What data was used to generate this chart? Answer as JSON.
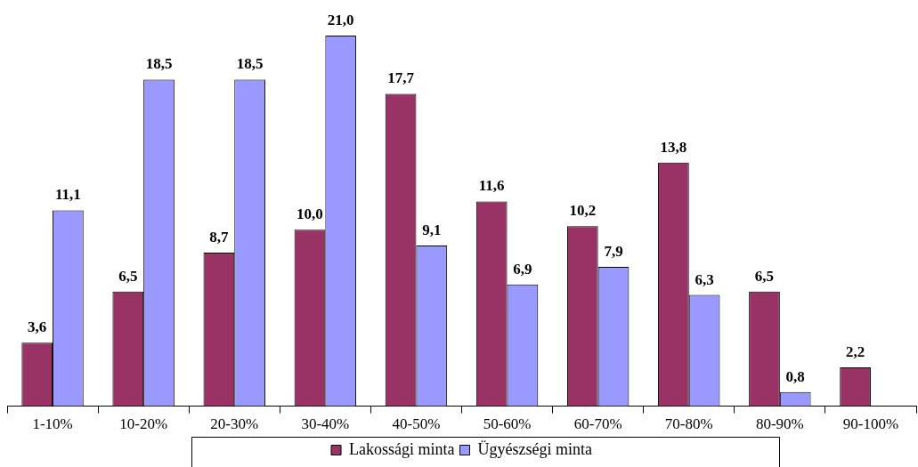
{
  "chart_data": {
    "type": "bar",
    "categories": [
      "1-10%",
      "10-20%",
      "20-30%",
      "30-40%",
      "40-50%",
      "50-60%",
      "60-70%",
      "70-80%",
      "80-90%",
      "90-100%"
    ],
    "series": [
      {
        "name": "Lakossági minta",
        "color": "#993366",
        "values": [
          3.6,
          6.5,
          8.7,
          10.0,
          17.7,
          11.6,
          10.2,
          13.8,
          6.5,
          2.2
        ],
        "value_labels": [
          "3,6",
          "6,5",
          "8,7",
          "10,0",
          "17,7",
          "11,6",
          "10,2",
          "13,8",
          "6,5",
          "2,2"
        ]
      },
      {
        "name": "Ügyészségi minta",
        "color": "#9999ff",
        "values": [
          11.1,
          18.5,
          18.5,
          21.0,
          9.1,
          6.9,
          7.9,
          6.3,
          0.8,
          null
        ],
        "value_labels": [
          "11,1",
          "18,5",
          "18,5",
          "21,0",
          "9,1",
          "6,9",
          "7,9",
          "6,3",
          "0,8",
          null
        ]
      }
    ],
    "grid": false,
    "legend": "bottom"
  }
}
